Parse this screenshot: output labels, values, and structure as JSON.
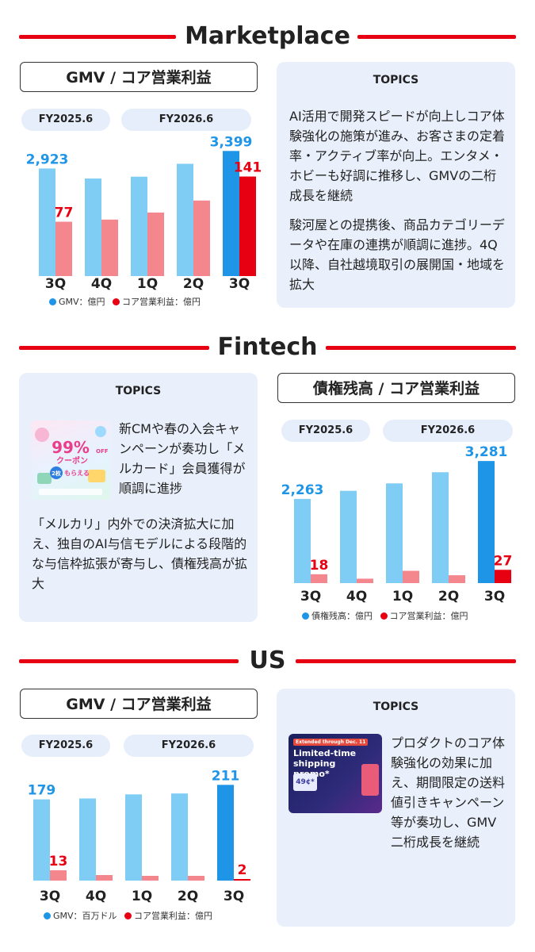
{
  "colors": {
    "blue_light": "#7fcdf4",
    "blue_dark": "#1f95e8",
    "red_light": "#f4878e",
    "red_dark": "#e60012",
    "blue_label": "#1f95e8",
    "red_label": "#e60012"
  },
  "marketplace": {
    "section_title": "Marketplace",
    "chart_title": "GMV / コア営業利益",
    "fy_prev": "FY2025.6",
    "fy_curr": "FY2026.6",
    "legend_gmv": "GMV：億円",
    "legend_op": "コア営業利益：億円",
    "topics": {
      "title": "TOPICS",
      "p1": "AI活用で開発スピードが向上しコア体験強化の施策が進み、お客さまの定着率・アクティブ率が向上。エンタメ・ホビーも好調に推移し、GMVの二桁成長を継続",
      "p2": "駿河屋との提携後、商品カテゴリーデータや在庫の連携が順調に進捗。4Q以降、自社越境取引の展開国・地域を拡大"
    }
  },
  "fintech": {
    "section_title": "Fintech",
    "chart_title": "債権残高 / コア営業利益",
    "fy_prev": "FY2025.6",
    "fy_curr": "FY2026.6",
    "legend_bal": "債権残高：億円",
    "legend_op": "コア営業利益：億円",
    "topics": {
      "title": "TOPICS",
      "p1": "新CMや春の入会キャンペーンが奏功し「メルカード」会員獲得が順調に進捗",
      "p2": "「メルカリ」内外での決済拡大に加え、独自のAI与信モデルによる段階的な与信枠拡張が寄与し、債権残高が拡大",
      "coupon_big": "99%",
      "coupon_off": "OFF",
      "coupon_word": "クーポン",
      "coupon_count": "2枚",
      "coupon_get": "もらえる"
    }
  },
  "us": {
    "section_title": "US",
    "chart_title": "GMV / コア営業利益",
    "fy_prev": "FY2025.6",
    "fy_curr": "FY2026.6",
    "legend_gmv": "GMV：百万ドル",
    "legend_op": "コア営業利益：億円",
    "topics": {
      "title": "TOPICS",
      "p1": "プロダクトのコア体験強化の効果に加え、期間限定の送料値引きキャンペーン等が奏功し、GMV二桁成長を継続",
      "promo_tag": "Extended through Dec. 11",
      "promo_title": "Limited-time shipping promo*",
      "promo_price": "49¢*"
    }
  },
  "chart_data": [
    {
      "type": "bar",
      "title": "GMV / コア営業利益",
      "categories": [
        "3Q",
        "4Q",
        "1Q",
        "2Q",
        "3Q"
      ],
      "series": [
        {
          "name": "GMV：億円",
          "values": [
            2923,
            2650,
            2700,
            3050,
            3399
          ]
        },
        {
          "name": "コア営業利益：億円",
          "values": [
            77,
            80,
            90,
            107,
            141
          ]
        }
      ],
      "labels": [
        {
          "series": 0,
          "index": 0,
          "text": "2,923"
        },
        {
          "series": 0,
          "index": 4,
          "text": "3,399"
        },
        {
          "series": 1,
          "index": 0,
          "text": "77"
        },
        {
          "series": 1,
          "index": 4,
          "text": "141"
        }
      ]
    },
    {
      "type": "bar",
      "title": "債権残高 / コア営業利益",
      "categories": [
        "3Q",
        "4Q",
        "1Q",
        "2Q",
        "3Q"
      ],
      "series": [
        {
          "name": "債権残高：億円",
          "values": [
            2263,
            2480,
            2680,
            2980,
            3281
          ]
        },
        {
          "name": "コア営業利益：億円",
          "values": [
            18,
            9,
            25,
            16,
            27
          ]
        }
      ],
      "labels": [
        {
          "series": 0,
          "index": 0,
          "text": "2,263"
        },
        {
          "series": 0,
          "index": 4,
          "text": "3,281"
        },
        {
          "series": 1,
          "index": 0,
          "text": "18"
        },
        {
          "series": 1,
          "index": 4,
          "text": "27"
        }
      ]
    },
    {
      "type": "bar",
      "title": "GMV / コア営業利益",
      "categories": [
        "3Q",
        "4Q",
        "1Q",
        "2Q",
        "3Q"
      ],
      "series": [
        {
          "name": "GMV：百万ドル",
          "values": [
            179,
            181,
            190,
            192,
            211
          ]
        },
        {
          "name": "コア営業利益：億円",
          "values": [
            13,
            7,
            6,
            6,
            2
          ]
        }
      ],
      "labels": [
        {
          "series": 0,
          "index": 0,
          "text": "179"
        },
        {
          "series": 0,
          "index": 4,
          "text": "211"
        },
        {
          "series": 1,
          "index": 0,
          "text": "13"
        },
        {
          "series": 1,
          "index": 4,
          "text": "2"
        }
      ]
    }
  ]
}
